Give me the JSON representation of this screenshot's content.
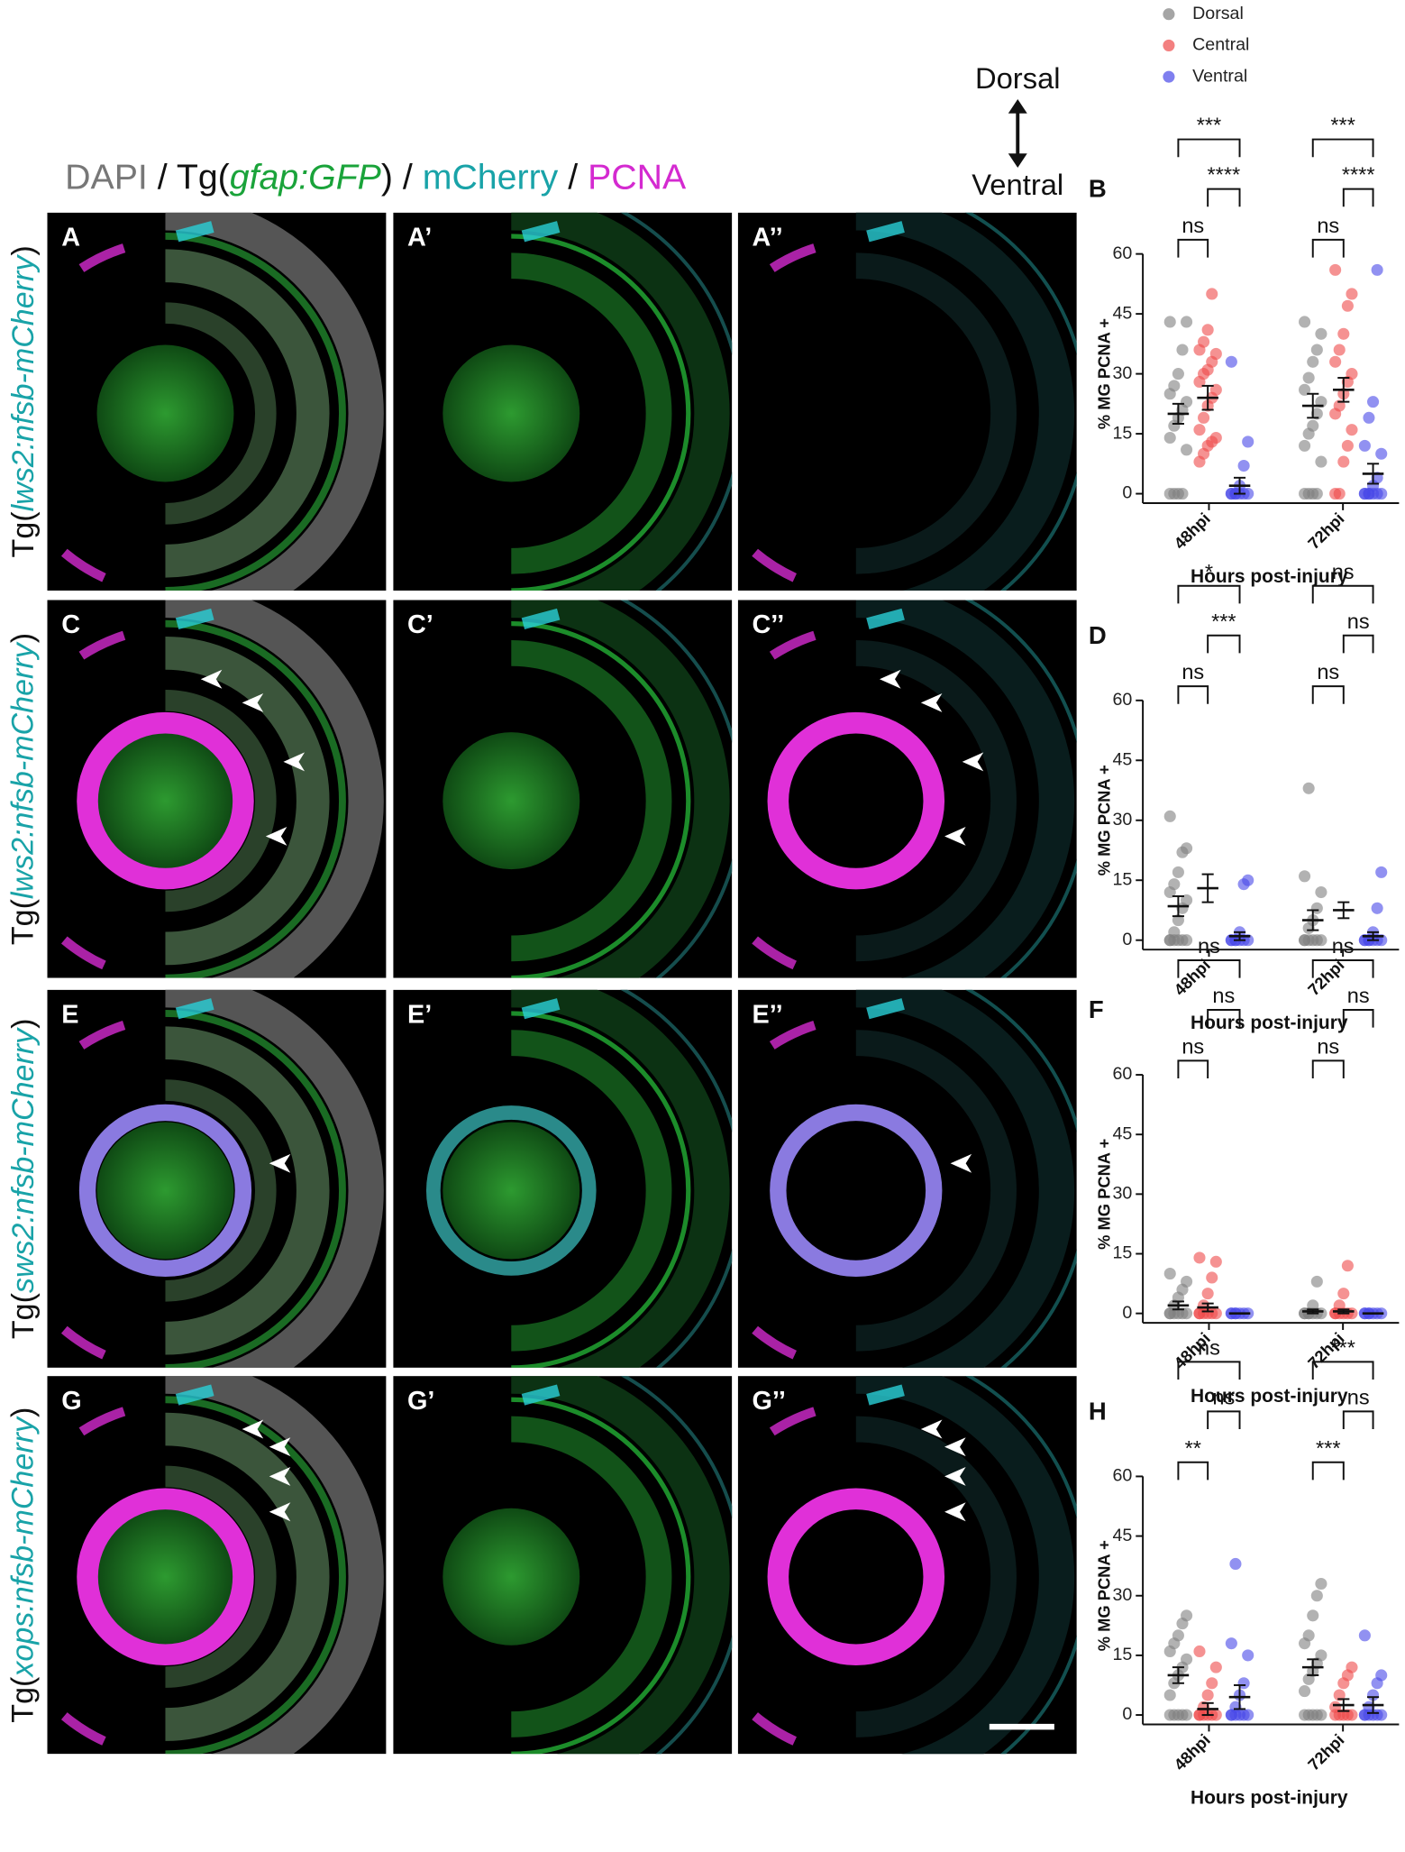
{
  "figure": {
    "title_parts": [
      "DAPI",
      " / Tg(",
      "gfap:GFP",
      ") / ",
      "mCherry",
      " / ",
      "PCNA"
    ],
    "orientation": {
      "top": "Dorsal",
      "bottom": "Ventral"
    },
    "panels": [
      "A",
      "A’",
      "A’’",
      "C",
      "C’",
      "C’’",
      "E",
      "E’",
      "E’’",
      "G",
      "G’",
      "G’’"
    ],
    "rows": [
      [
        "Tg(",
        "lws2:nfsb-mCherry",
        ")"
      ],
      [
        "Tg(",
        "lws2:nfsb-mCherry",
        ")"
      ],
      [
        "Tg(",
        "sws2:nfsb-mCherry",
        ")"
      ],
      [
        "Tg(",
        "xops:nfsb-mCherry",
        ")"
      ]
    ]
  },
  "chart_data": [
    {
      "type": "scatter",
      "panel": "B",
      "ylabel": "% MG PCNA +",
      "xlabel": "Hours post-injury",
      "categories": [
        "48hpi",
        "72hpi"
      ],
      "ylim": [
        0,
        60
      ],
      "yticks": [
        0,
        15,
        30,
        45,
        60
      ],
      "annotations": [
        "***",
        "****",
        "ns",
        "***",
        "****",
        "ns"
      ],
      "series": [
        {
          "name": "Dorsal",
          "color": "#7f7f7f",
          "values": [
            20,
            22
          ],
          "errors": [
            2.5,
            3
          ],
          "points": [
            [
              0,
              0,
              0,
              0,
              11,
              14,
              17,
              19,
              21,
              23,
              25,
              27,
              30,
              36,
              43,
              43
            ],
            [
              0,
              0,
              0,
              0,
              8,
              12,
              15,
              17,
              20,
              23,
              26,
              29,
              33,
              36,
              40,
              43
            ]
          ]
        },
        {
          "name": "Central",
          "color": "#ee4a4a",
          "values": [
            24,
            26
          ],
          "errors": [
            3,
            3
          ],
          "points": [
            [
              8,
              10,
              12,
              13,
              14,
              16,
              19,
              22,
              24,
              26,
              28,
              30,
              31,
              33,
              35,
              36,
              38,
              41,
              50
            ],
            [
              0,
              0,
              8,
              12,
              16,
              20,
              22,
              25,
              28,
              30,
              33,
              36,
              40,
              47,
              50,
              56
            ]
          ]
        },
        {
          "name": "Ventral",
          "color": "#4848e8",
          "values": [
            2,
            5
          ],
          "errors": [
            2,
            2.5
          ],
          "points": [
            [
              0,
              0,
              0,
              0,
              0,
              0,
              0,
              2,
              7,
              13,
              33
            ],
            [
              0,
              0,
              0,
              0,
              0,
              0,
              0,
              2,
              4,
              10,
              12,
              19,
              23,
              56
            ]
          ]
        }
      ]
    },
    {
      "type": "scatter",
      "panel": "D",
      "ylabel": "% MG PCNA +",
      "xlabel": "Hours post-injury",
      "categories": [
        "48hpi",
        "72hpi"
      ],
      "ylim": [
        0,
        60
      ],
      "yticks": [
        0,
        15,
        30,
        45,
        60
      ],
      "annotations": [
        "*",
        "***",
        "ns",
        "ns",
        "ns",
        "ns"
      ],
      "series": [
        {
          "color": "#7f7f7f",
          "values": [
            8.5,
            5
          ],
          "errors": [
            2.5,
            2.5
          ],
          "points": [
            [
              0,
              0,
              0,
              0,
              0,
              0,
              2,
              5,
              8,
              10,
              12,
              14,
              17,
              22,
              23,
              31
            ],
            [
              0,
              0,
              0,
              0,
              0,
              0,
              3,
              5,
              8,
              12,
              16,
              38
            ]
          ]
        },
        {
          "color": "#ee4a4a",
          "values": [
            13,
            7.5
          ],
          "errors": [
            3.5,
            2
          ]
        },
        {
          "color": "#4848e8",
          "values": [
            1,
            1
          ],
          "errors": [
            1,
            1
          ],
          "points": [
            [
              0,
              0,
              0,
              0,
              0,
              0,
              0,
              2,
              14,
              15
            ],
            [
              0,
              0,
              0,
              0,
              0,
              0,
              0,
              2,
              8,
              17
            ]
          ]
        }
      ]
    },
    {
      "type": "scatter",
      "panel": "F",
      "ylabel": "% MG PCNA +",
      "xlabel": "Hours post-injury",
      "categories": [
        "48hpi",
        "72hpi"
      ],
      "ylim": [
        0,
        60
      ],
      "yticks": [
        0,
        15,
        30,
        45,
        60
      ],
      "annotations": [
        "ns",
        "ns",
        "ns",
        "ns",
        "ns",
        "ns"
      ],
      "series": [
        {
          "color": "#7f7f7f",
          "values": [
            2,
            0.5
          ],
          "errors": [
            1,
            0.5
          ],
          "points": [
            [
              0,
              0,
              0,
              0,
              0,
              0,
              2,
              4,
              6,
              8,
              10
            ],
            [
              0,
              0,
              0,
              0,
              0,
              0,
              0,
              2,
              8
            ]
          ]
        },
        {
          "color": "#ee4a4a",
          "values": [
            1.5,
            0.5
          ],
          "errors": [
            1,
            0.5
          ],
          "points": [
            [
              0,
              0,
              0,
              0,
              0,
              0,
              2,
              5,
              9,
              13,
              14
            ],
            [
              0,
              0,
              0,
              0,
              0,
              0,
              2,
              5,
              12
            ]
          ]
        },
        {
          "color": "#4848e8",
          "values": [
            0,
            0
          ],
          "errors": [
            0,
            0
          ],
          "points": [
            [
              0,
              0,
              0,
              0,
              0,
              0,
              0
            ],
            [
              0,
              0,
              0,
              0,
              0,
              0,
              0
            ]
          ]
        }
      ]
    },
    {
      "type": "scatter",
      "panel": "H",
      "ylabel": "% MG PCNA +",
      "xlabel": "Hours post-injury",
      "categories": [
        "48hpi",
        "72hpi"
      ],
      "ylim": [
        0,
        60
      ],
      "yticks": [
        0,
        15,
        30,
        45,
        60
      ],
      "annotations": [
        "ns",
        "ns",
        "**",
        "***",
        "ns",
        "***"
      ],
      "series": [
        {
          "color": "#7f7f7f",
          "values": [
            10,
            12
          ],
          "errors": [
            2,
            2
          ],
          "points": [
            [
              0,
              0,
              0,
              0,
              0,
              5,
              8,
              10,
              12,
              14,
              16,
              18,
              20,
              23,
              25
            ],
            [
              0,
              0,
              0,
              0,
              0,
              6,
              9,
              11,
              13,
              15,
              18,
              20,
              25,
              30,
              33
            ]
          ]
        },
        {
          "color": "#ee4a4a",
          "values": [
            1.5,
            2.5
          ],
          "errors": [
            1.5,
            1.5
          ],
          "points": [
            [
              0,
              0,
              0,
              0,
              0,
              0,
              2,
              5,
              8,
              12,
              16
            ],
            [
              0,
              0,
              0,
              0,
              0,
              2,
              5,
              8,
              10,
              12
            ]
          ]
        },
        {
          "color": "#4848e8",
          "values": [
            4.5,
            2.5
          ],
          "errors": [
            3,
            2
          ],
          "points": [
            [
              0,
              0,
              0,
              0,
              0,
              0,
              2,
              5,
              8,
              15,
              18,
              38
            ],
            [
              0,
              0,
              0,
              0,
              0,
              0,
              2,
              5,
              8,
              10,
              20
            ]
          ]
        }
      ]
    }
  ]
}
